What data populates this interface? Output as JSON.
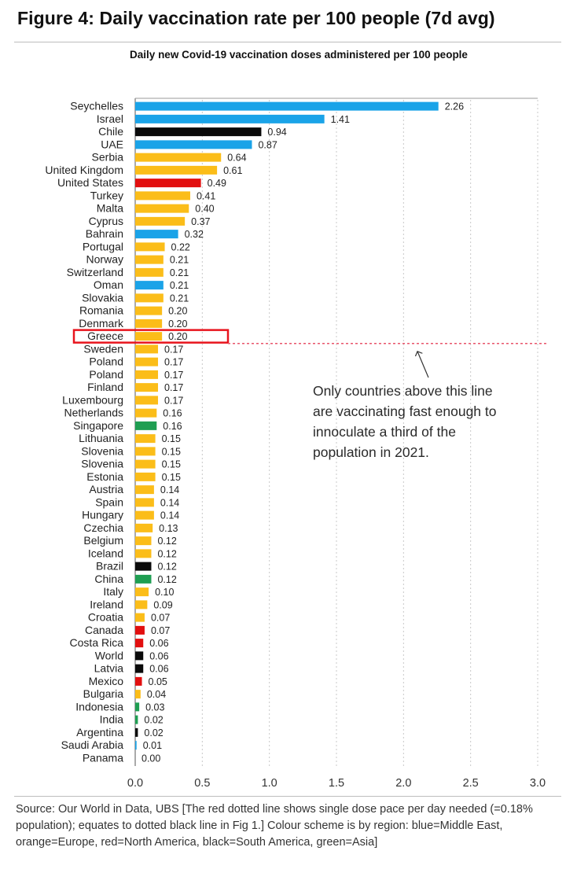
{
  "figure_title": "Figure 4: Daily vaccination rate per 100 people (7d avg)",
  "source_note": "Source:  Our World in Data, UBS [The red dotted line shows single dose pace per day needed (=0.18% population); equates to dotted black line in Fig 1.] Colour scheme is by region: blue=Middle East, orange=Europe, red=North America, black=South America, green=Asia]",
  "region_colors": {
    "Middle East": "#1aa3e8",
    "Europe": "#fbbd19",
    "North America": "#e20f0f",
    "South America": "#0a0a0a",
    "Asia": "#1f9e52"
  },
  "chart_data": {
    "type": "bar",
    "orientation": "horizontal",
    "title": "Daily new Covid-19 vaccination doses administered per 100 people",
    "xlabel": "",
    "ylabel": "",
    "xlim": [
      0,
      3.0
    ],
    "xticks": [
      "0.0",
      "0.5",
      "1.0",
      "1.5",
      "2.0",
      "2.5",
      "3.0"
    ],
    "grid": "vertical dotted",
    "categories": [
      "Seychelles",
      "Israel",
      "Chile",
      "UAE",
      "Serbia",
      "United Kingdom",
      "United States",
      "Turkey",
      "Malta",
      "Cyprus",
      "Bahrain",
      "Portugal",
      "Norway",
      "Switzerland",
      "Oman",
      "Slovakia",
      "Romania",
      "Denmark",
      "Greece",
      "Sweden",
      "Poland",
      "Poland",
      "Finland",
      "Luxembourg",
      "Netherlands",
      "Singapore",
      "Lithuania",
      "Slovenia",
      "Slovenia",
      "Estonia",
      "Austria",
      "Spain",
      "Hungary",
      "Czechia",
      "Belgium",
      "Iceland",
      "Brazil",
      "China",
      "Italy",
      "Ireland",
      "Croatia",
      "Canada",
      "Costa Rica",
      "World",
      "Latvia",
      "Mexico",
      "Bulgaria",
      "Indonesia",
      "India",
      "Argentina",
      "Saudi Arabia",
      "Panama"
    ],
    "values": [
      2.26,
      1.41,
      0.94,
      0.87,
      0.64,
      0.61,
      0.49,
      0.41,
      0.4,
      0.37,
      0.32,
      0.22,
      0.21,
      0.21,
      0.21,
      0.21,
      0.2,
      0.2,
      0.2,
      0.17,
      0.17,
      0.17,
      0.17,
      0.17,
      0.16,
      0.16,
      0.15,
      0.15,
      0.15,
      0.15,
      0.14,
      0.14,
      0.14,
      0.13,
      0.12,
      0.12,
      0.12,
      0.12,
      0.1,
      0.09,
      0.07,
      0.07,
      0.06,
      0.06,
      0.06,
      0.05,
      0.04,
      0.03,
      0.02,
      0.02,
      0.01,
      0.0
    ],
    "labels": [
      "2.26",
      "1.41",
      "0.94",
      "0.87",
      "0.64",
      "0.61",
      "0.49",
      "0.41",
      "0.40",
      "0.37",
      "0.32",
      "0.22",
      "0.21",
      "0.21",
      "0.21",
      "0.21",
      "0.20",
      "0.20",
      "0.20",
      "0.17",
      "0.17",
      "0.17",
      "0.17",
      "0.17",
      "0.16",
      "0.16",
      "0.15",
      "0.15",
      "0.15",
      "0.15",
      "0.14",
      "0.14",
      "0.14",
      "0.13",
      "0.12",
      "0.12",
      "0.12",
      "0.12",
      "0.10",
      "0.09",
      "0.07",
      "0.07",
      "0.06",
      "0.06",
      "0.06",
      "0.05",
      "0.04",
      "0.03",
      "0.02",
      "0.02",
      "0.01",
      "0.00"
    ],
    "regions": [
      "Middle East",
      "Middle East",
      "South America",
      "Middle East",
      "Europe",
      "Europe",
      "North America",
      "Europe",
      "Europe",
      "Europe",
      "Middle East",
      "Europe",
      "Europe",
      "Europe",
      "Middle East",
      "Europe",
      "Europe",
      "Europe",
      "Europe",
      "Europe",
      "Europe",
      "Europe",
      "Europe",
      "Europe",
      "Europe",
      "Asia",
      "Europe",
      "Europe",
      "Europe",
      "Europe",
      "Europe",
      "Europe",
      "Europe",
      "Europe",
      "Europe",
      "Europe",
      "South America",
      "Asia",
      "Europe",
      "Europe",
      "Europe",
      "North America",
      "North America",
      "South America",
      "South America",
      "North America",
      "Europe",
      "Asia",
      "Asia",
      "South America",
      "Middle East",
      "North America"
    ],
    "highlighted_category": "Greece",
    "threshold_line": {
      "after_category": "Greece",
      "color": "#e8556b",
      "style": "dotted"
    },
    "annotation": {
      "lines": [
        "Only countries above this line",
        "are vaccinating fast enough to",
        "innoculate a third of the",
        "population in 2021."
      ]
    }
  }
}
